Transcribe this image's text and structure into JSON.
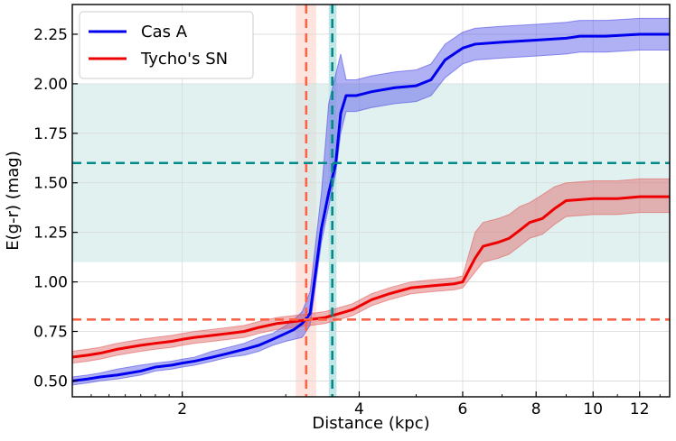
{
  "chart_data": {
    "type": "line",
    "xlabel": "Distance (kpc)",
    "ylabel": "E(g-r) (mag)",
    "xscale": "log",
    "xlim": [
      1.3,
      13.5
    ],
    "ylim": [
      0.42,
      2.4
    ],
    "grid": true,
    "legend_position": "top-left",
    "xticks": [
      2,
      4,
      6,
      8,
      10,
      12
    ],
    "yticks": [
      0.5,
      0.75,
      1.0,
      1.25,
      1.5,
      1.75,
      2.0,
      2.25
    ],
    "ytick_labels": [
      "0.50",
      "0.75",
      "1.00",
      "1.25",
      "1.50",
      "1.75",
      "2.00",
      "2.25"
    ],
    "series": [
      {
        "name": "Cas A",
        "color": "#0000ee",
        "band_color": "#4f4fe6",
        "x": [
          1.3,
          1.38,
          1.45,
          1.55,
          1.7,
          1.8,
          1.92,
          2.0,
          2.1,
          2.25,
          2.4,
          2.55,
          2.7,
          2.85,
          3.0,
          3.1,
          3.2,
          3.3,
          3.45,
          3.55,
          3.65,
          3.72,
          3.8,
          3.95,
          4.2,
          4.6,
          5.0,
          5.3,
          5.6,
          6.0,
          6.3,
          7.0,
          8.0,
          9.0,
          9.5,
          10.5,
          12.0,
          13.5
        ],
        "y": [
          0.5,
          0.51,
          0.52,
          0.53,
          0.55,
          0.57,
          0.58,
          0.59,
          0.6,
          0.62,
          0.64,
          0.66,
          0.68,
          0.71,
          0.74,
          0.76,
          0.79,
          0.84,
          1.27,
          1.45,
          1.6,
          1.85,
          1.94,
          1.94,
          1.96,
          1.98,
          1.99,
          2.02,
          2.12,
          2.18,
          2.2,
          2.21,
          2.22,
          2.23,
          2.24,
          2.24,
          2.25,
          2.25
        ],
        "y_low": [
          0.48,
          0.49,
          0.5,
          0.51,
          0.53,
          0.55,
          0.56,
          0.57,
          0.58,
          0.6,
          0.62,
          0.63,
          0.65,
          0.68,
          0.7,
          0.71,
          0.72,
          0.78,
          1.2,
          1.38,
          1.55,
          1.75,
          1.86,
          1.86,
          1.88,
          1.9,
          1.91,
          1.94,
          2.03,
          2.1,
          2.12,
          2.13,
          2.14,
          2.15,
          2.16,
          2.16,
          2.17,
          2.17
        ],
        "y_high": [
          0.52,
          0.53,
          0.54,
          0.56,
          0.58,
          0.59,
          0.6,
          0.61,
          0.62,
          0.65,
          0.67,
          0.69,
          0.72,
          0.74,
          0.78,
          0.81,
          0.85,
          0.95,
          1.45,
          1.9,
          2.05,
          2.15,
          2.02,
          2.02,
          2.04,
          2.06,
          2.07,
          2.1,
          2.2,
          2.26,
          2.28,
          2.29,
          2.3,
          2.31,
          2.32,
          2.32,
          2.33,
          2.33
        ]
      },
      {
        "name": "Tycho's SN",
        "color": "#ee0000",
        "band_color": "#e06060",
        "x": [
          1.3,
          1.38,
          1.45,
          1.55,
          1.7,
          1.8,
          1.92,
          2.0,
          2.1,
          2.25,
          2.4,
          2.55,
          2.7,
          2.9,
          3.1,
          3.3,
          3.5,
          3.7,
          3.9,
          4.2,
          4.5,
          4.9,
          5.3,
          5.8,
          6.0,
          6.3,
          6.5,
          6.9,
          7.2,
          7.5,
          7.8,
          8.2,
          8.6,
          9.0,
          10.0,
          11.0,
          12.0,
          13.5
        ],
        "y": [
          0.62,
          0.63,
          0.64,
          0.66,
          0.68,
          0.69,
          0.7,
          0.71,
          0.72,
          0.73,
          0.74,
          0.75,
          0.77,
          0.79,
          0.8,
          0.81,
          0.82,
          0.84,
          0.86,
          0.91,
          0.94,
          0.97,
          0.98,
          0.99,
          1.0,
          1.12,
          1.18,
          1.2,
          1.22,
          1.26,
          1.3,
          1.32,
          1.37,
          1.41,
          1.42,
          1.42,
          1.43,
          1.43
        ],
        "y_low": [
          0.59,
          0.6,
          0.61,
          0.63,
          0.65,
          0.66,
          0.67,
          0.68,
          0.69,
          0.7,
          0.71,
          0.72,
          0.74,
          0.76,
          0.77,
          0.78,
          0.79,
          0.81,
          0.83,
          0.88,
          0.91,
          0.94,
          0.95,
          0.96,
          0.97,
          1.05,
          1.1,
          1.12,
          1.14,
          1.18,
          1.22,
          1.24,
          1.29,
          1.33,
          1.34,
          1.34,
          1.35,
          1.35
        ],
        "y_high": [
          0.65,
          0.66,
          0.67,
          0.69,
          0.71,
          0.72,
          0.73,
          0.74,
          0.75,
          0.76,
          0.77,
          0.78,
          0.8,
          0.82,
          0.83,
          0.84,
          0.85,
          0.87,
          0.89,
          0.94,
          0.97,
          1.0,
          1.01,
          1.02,
          1.03,
          1.25,
          1.3,
          1.32,
          1.34,
          1.38,
          1.4,
          1.44,
          1.48,
          1.5,
          1.51,
          1.51,
          1.52,
          1.52
        ]
      }
    ],
    "reference_lines": [
      {
        "orientation": "vertical",
        "value": 3.25,
        "band": [
          3.12,
          3.38
        ],
        "color": "#ff6347",
        "band_color": "#fdd9d0"
      },
      {
        "orientation": "vertical",
        "value": 3.6,
        "band": [
          3.55,
          3.66
        ],
        "color": "#008b8b",
        "band_color": "#a8dcdc"
      },
      {
        "orientation": "horizontal",
        "value": 1.6,
        "band": [
          1.1,
          2.0
        ],
        "color": "#008b8b",
        "band_color": "#cce8e6"
      },
      {
        "orientation": "horizontal",
        "value": 0.81,
        "color": "#ff6347"
      }
    ]
  }
}
